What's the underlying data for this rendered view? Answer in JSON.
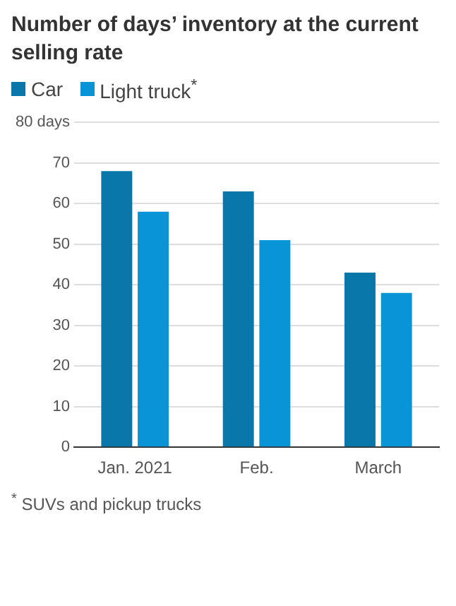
{
  "chart_data": {
    "type": "bar",
    "title": "Number of days’ inventory at the current selling rate",
    "categories": [
      "Jan. 2021",
      "Feb.",
      "March"
    ],
    "series": [
      {
        "name": "Car",
        "color": "#0a77aa",
        "values": [
          68,
          63,
          43
        ]
      },
      {
        "name": "Light truck$^{*}$",
        "color": "#0a94d8",
        "values": [
          58,
          51,
          38
        ]
      }
    ],
    "ylim": [
      0,
      80
    ],
    "yticks": [
      0,
      10,
      20,
      30,
      40,
      50,
      60,
      70,
      {
        "value": 80,
        "label": "80 days"
      }
    ],
    "grid": "y",
    "legend": "top left",
    "annotations": [
      "$^{*}$ SUVs and pickup trucks"
    ]
  }
}
